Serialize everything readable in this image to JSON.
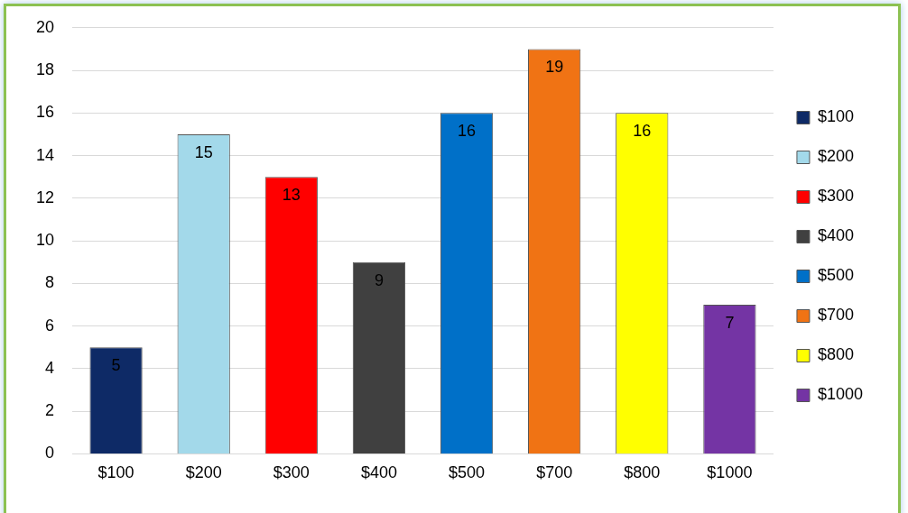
{
  "chart_data": {
    "type": "bar",
    "categories": [
      "$100",
      "$200",
      "$300",
      "$400",
      "$500",
      "$700",
      "$800",
      "$1000"
    ],
    "series": [
      {
        "name": "$100",
        "color": "#0e2a66",
        "values": [
          5,
          null,
          null,
          null,
          null,
          null,
          null,
          null
        ]
      },
      {
        "name": "$200",
        "color": "#a3d9ea",
        "values": [
          null,
          15,
          null,
          null,
          null,
          null,
          null,
          null
        ]
      },
      {
        "name": "$300",
        "color": "#ff0000",
        "values": [
          null,
          null,
          13,
          null,
          null,
          null,
          null,
          null
        ]
      },
      {
        "name": "$400",
        "color": "#404040",
        "values": [
          null,
          null,
          null,
          9,
          null,
          null,
          null,
          null
        ]
      },
      {
        "name": "$500",
        "color": "#0070c8",
        "values": [
          null,
          null,
          null,
          null,
          16,
          null,
          null,
          null
        ]
      },
      {
        "name": "$700",
        "color": "#f07314",
        "values": [
          null,
          null,
          null,
          null,
          null,
          19,
          null,
          null
        ]
      },
      {
        "name": "$800",
        "color": "#ffff00",
        "values": [
          null,
          null,
          null,
          null,
          null,
          null,
          16,
          null
        ]
      },
      {
        "name": "$1000",
        "color": "#7434a4",
        "values": [
          null,
          null,
          null,
          null,
          null,
          null,
          null,
          7
        ]
      }
    ],
    "ylim": [
      0,
      20
    ],
    "yticks": [
      0,
      2,
      4,
      6,
      8,
      10,
      12,
      14,
      16,
      18,
      20
    ],
    "grid": "y",
    "legend": "right",
    "data_labels": true
  }
}
